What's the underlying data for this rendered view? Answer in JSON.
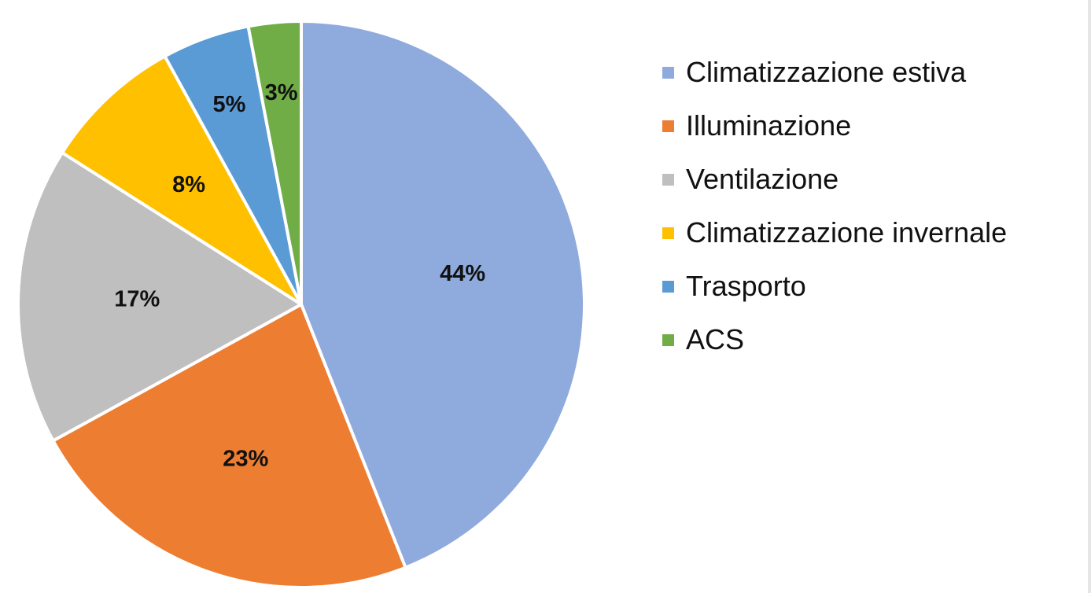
{
  "chart_data": {
    "type": "pie",
    "title": "",
    "categories": [
      "Climatizzazione estiva",
      "Illuminazione",
      "Ventilazione",
      "Climatizzazione invernale",
      "Trasporto",
      "ACS"
    ],
    "values": [
      44,
      23,
      17,
      8,
      5,
      3
    ],
    "data_labels": [
      "44%",
      "23%",
      "17%",
      "8%",
      "5%",
      "3%"
    ],
    "colors": [
      "#8faadc",
      "#ed7d31",
      "#bfbfbf",
      "#ffc000",
      "#5b9bd5",
      "#70ad47"
    ],
    "start_angle_deg": 0,
    "direction": "clockwise",
    "legend_position": "right"
  }
}
